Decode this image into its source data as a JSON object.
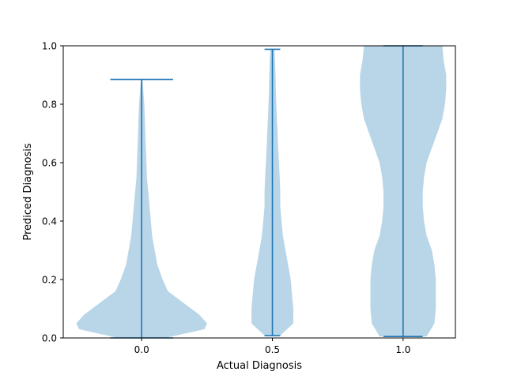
{
  "chart_data": {
    "type": "violin",
    "title": "",
    "xlabel": "Actual Diagnosis",
    "ylabel": "Prediced Diagnosis",
    "xlim": [
      -0.3,
      1.2
    ],
    "ylim": [
      0,
      1
    ],
    "x_ticks": [
      0.0,
      0.5,
      1.0
    ],
    "x_tick_labels": [
      "0.0",
      "0.5",
      "1.0"
    ],
    "y_ticks": [
      0.0,
      0.2,
      0.4,
      0.6,
      0.8,
      1.0
    ],
    "y_tick_labels": [
      "0.0",
      "0.2",
      "0.4",
      "0.6",
      "0.8",
      "1.0"
    ],
    "grid": false,
    "colors": {
      "body": "#b9d5e8",
      "line": "#1f77b4"
    },
    "violins": [
      {
        "position": 0.0,
        "min": 0.0,
        "max": 0.885,
        "cap_halfwidth": 0.12,
        "profile": [
          [
            0.0,
            0.09
          ],
          [
            0.03,
            0.24
          ],
          [
            0.05,
            0.25
          ],
          [
            0.08,
            0.22
          ],
          [
            0.12,
            0.16
          ],
          [
            0.16,
            0.1
          ],
          [
            0.2,
            0.08
          ],
          [
            0.25,
            0.06
          ],
          [
            0.3,
            0.05
          ],
          [
            0.35,
            0.04
          ],
          [
            0.4,
            0.035
          ],
          [
            0.45,
            0.03
          ],
          [
            0.5,
            0.025
          ],
          [
            0.55,
            0.02
          ],
          [
            0.6,
            0.018
          ],
          [
            0.65,
            0.016
          ],
          [
            0.7,
            0.014
          ],
          [
            0.75,
            0.012
          ],
          [
            0.8,
            0.01
          ],
          [
            0.85,
            0.006
          ],
          [
            0.885,
            0.003
          ]
        ]
      },
      {
        "position": 0.5,
        "min": 0.008,
        "max": 0.988,
        "cap_halfwidth": 0.03,
        "profile": [
          [
            0.008,
            0.03
          ],
          [
            0.05,
            0.08
          ],
          [
            0.1,
            0.08
          ],
          [
            0.15,
            0.075
          ],
          [
            0.2,
            0.07
          ],
          [
            0.25,
            0.06
          ],
          [
            0.3,
            0.05
          ],
          [
            0.35,
            0.04
          ],
          [
            0.4,
            0.035
          ],
          [
            0.45,
            0.03
          ],
          [
            0.5,
            0.03
          ],
          [
            0.55,
            0.028
          ],
          [
            0.6,
            0.025
          ],
          [
            0.65,
            0.022
          ],
          [
            0.7,
            0.02
          ],
          [
            0.75,
            0.017
          ],
          [
            0.8,
            0.015
          ],
          [
            0.85,
            0.013
          ],
          [
            0.9,
            0.012
          ],
          [
            0.95,
            0.01
          ],
          [
            0.988,
            0.008
          ]
        ]
      },
      {
        "position": 1.0,
        "min": 0.005,
        "max": 1.0,
        "cap_halfwidth": 0.075,
        "profile": [
          [
            0.005,
            0.09
          ],
          [
            0.05,
            0.12
          ],
          [
            0.1,
            0.125
          ],
          [
            0.15,
            0.125
          ],
          [
            0.2,
            0.125
          ],
          [
            0.25,
            0.12
          ],
          [
            0.3,
            0.11
          ],
          [
            0.35,
            0.09
          ],
          [
            0.4,
            0.08
          ],
          [
            0.45,
            0.075
          ],
          [
            0.5,
            0.075
          ],
          [
            0.55,
            0.08
          ],
          [
            0.6,
            0.09
          ],
          [
            0.65,
            0.11
          ],
          [
            0.7,
            0.13
          ],
          [
            0.75,
            0.15
          ],
          [
            0.8,
            0.16
          ],
          [
            0.85,
            0.165
          ],
          [
            0.9,
            0.165
          ],
          [
            0.95,
            0.155
          ],
          [
            1.0,
            0.15
          ]
        ]
      }
    ]
  }
}
